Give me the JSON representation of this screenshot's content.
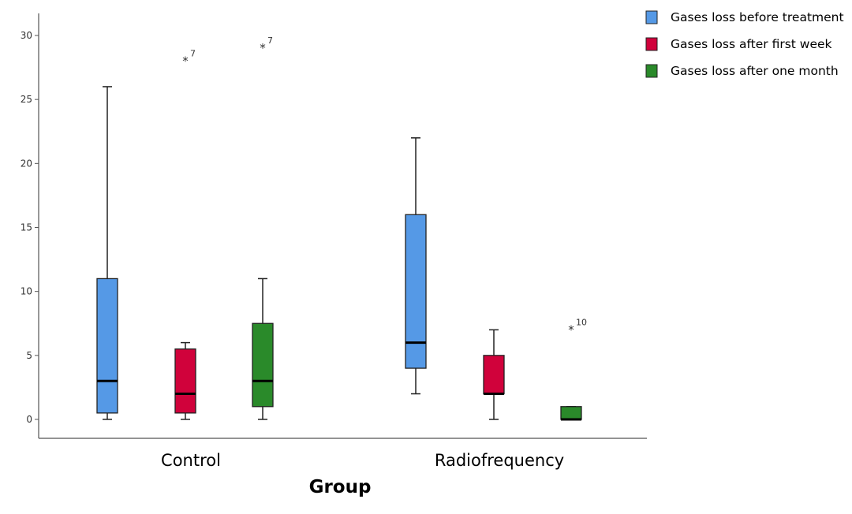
{
  "chart_data": {
    "type": "boxplot",
    "xlabel": "Group",
    "ylabel": "",
    "ylim": [
      -1.5,
      32
    ],
    "yticks": [
      0,
      5,
      10,
      15,
      20,
      25,
      30
    ],
    "grid": false,
    "legend_position": "top-right",
    "categories": [
      "Control",
      "Radiofrequency"
    ],
    "series": [
      {
        "name": "Gases loss before treatment",
        "color": "#5599e6",
        "boxes": [
          {
            "min": 0,
            "q1": 0.5,
            "median": 3,
            "q3": 11,
            "max": 26,
            "outliers": []
          },
          {
            "min": 2,
            "q1": 4,
            "median": 6,
            "q3": 16,
            "max": 22,
            "outliers": []
          }
        ]
      },
      {
        "name": "Gases loss after first week",
        "color": "#d0023b",
        "boxes": [
          {
            "min": 0,
            "q1": 0.5,
            "median": 2,
            "q3": 5.5,
            "max": 6,
            "outliers": [
              {
                "value": 28,
                "label": "7"
              }
            ]
          },
          {
            "min": 0,
            "q1": 2,
            "median": 2,
            "q3": 5,
            "max": 7,
            "outliers": []
          }
        ]
      },
      {
        "name": "Gases loss after one month",
        "color": "#2a8a2a",
        "boxes": [
          {
            "min": 0,
            "q1": 1,
            "median": 3,
            "q3": 7.5,
            "max": 11,
            "outliers": [
              {
                "value": 29,
                "label": "7"
              }
            ]
          },
          {
            "min": 0,
            "q1": 0,
            "median": 0,
            "q3": 1,
            "max": 1,
            "outliers": [
              {
                "value": 7,
                "label": "10"
              }
            ]
          }
        ]
      }
    ]
  }
}
